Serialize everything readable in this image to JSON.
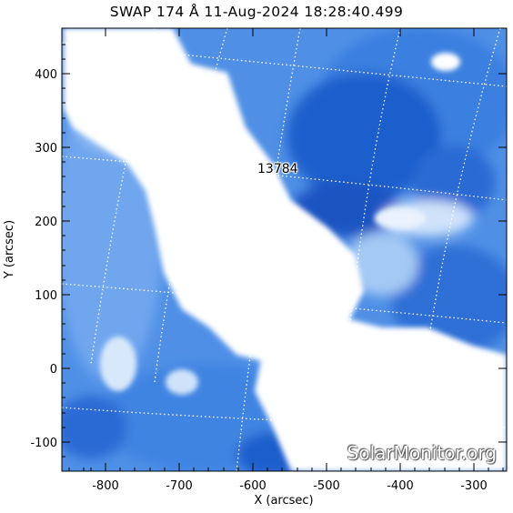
{
  "title": "SWAP 174 Å 11-Aug-2024 18:28:40.499",
  "region_label": "13784",
  "watermark": "SolarMonitor.org",
  "axes": {
    "xlabel": "X (arcsec)",
    "ylabel": "Y (arcsec)",
    "x_ticks": [
      "-800",
      "-700",
      "-600",
      "-500",
      "-400",
      "-300"
    ],
    "y_ticks": [
      "400",
      "300",
      "200",
      "100",
      "0",
      "-100"
    ]
  },
  "colors": {
    "bright": "#ffffff",
    "mid": "#7fb5f0",
    "dark": "#1f5fcc",
    "deep": "#0f3f9a"
  }
}
